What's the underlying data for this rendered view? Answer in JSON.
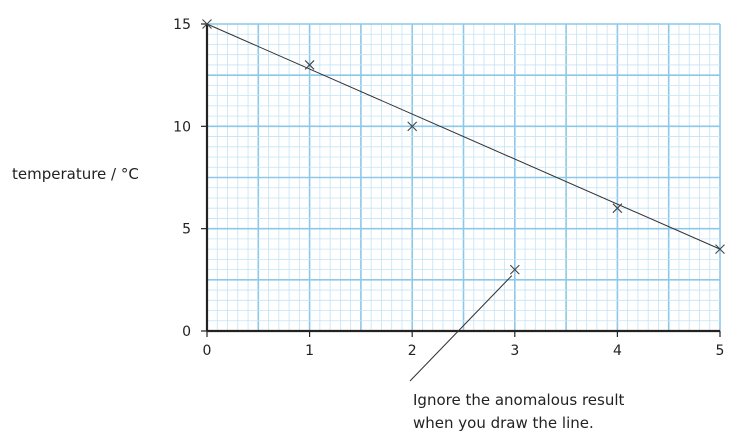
{
  "chart_data": {
    "type": "scatter",
    "xlim": [
      0,
      5
    ],
    "ylim": [
      0,
      15
    ],
    "x_ticks": [
      "0",
      "1",
      "2",
      "3",
      "4",
      "5"
    ],
    "y_ticks": [
      "0",
      "5",
      "10",
      "15"
    ],
    "xlabel": "",
    "ylabel": "temperature / °C",
    "grid": true,
    "points": [
      {
        "x": 0,
        "y": 15
      },
      {
        "x": 1,
        "y": 13
      },
      {
        "x": 2,
        "y": 10
      },
      {
        "x": 3,
        "y": 3
      },
      {
        "x": 4,
        "y": 6
      },
      {
        "x": 5,
        "y": 4
      }
    ],
    "best_fit_line": {
      "x": [
        0,
        5
      ],
      "y": [
        15,
        4
      ]
    },
    "annotation": {
      "lines": [
        "Ignore the anomalous result",
        "when you draw the line."
      ],
      "points_to": {
        "x": 3,
        "y": 3
      }
    }
  },
  "colors": {
    "grid_major": "#8cc8ea",
    "grid_minor": "#c4e3f5",
    "axis": "#222222",
    "data": "#444444"
  }
}
